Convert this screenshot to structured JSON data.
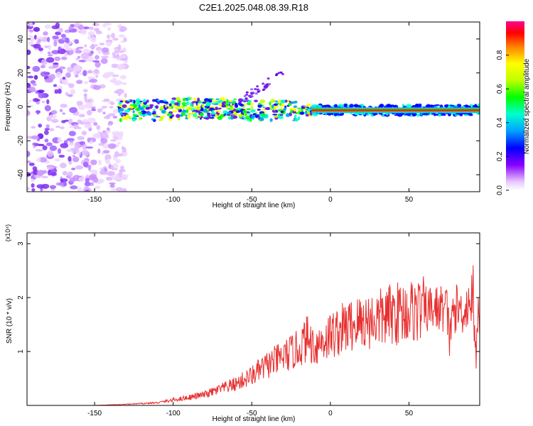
{
  "title": "C2E1.2025.048.08.39.R18",
  "chart_data": [
    {
      "type": "heatmap",
      "xlabel": "Height of straight line (km)",
      "ylabel": "Frequency (Hz)",
      "xlim": [
        -193,
        95
      ],
      "ylim": [
        -50,
        50
      ],
      "x_ticks": [
        -150,
        -100,
        -50,
        0,
        50
      ],
      "y_ticks": [
        -40,
        -20,
        0,
        20,
        40
      ],
      "colorbar": {
        "label": "Normalized spectral amplitude",
        "range": [
          0,
          1
        ],
        "ticks": [
          "0.0",
          "0.2",
          "0.4",
          "0.6",
          "0.8"
        ]
      },
      "features": {
        "noise_region_x": [
          -193,
          -130
        ],
        "echo_trace": {
          "x_start": -135,
          "x_end": 95,
          "center_freq_hz": -2,
          "strong_from_x": -12
        }
      }
    },
    {
      "type": "line",
      "xlabel": "Height of straight line (km)",
      "ylabel": "SNR (10 * v/v)",
      "y_scale_label": "(x10⁴)",
      "xlim": [
        -193,
        95
      ],
      "ylim": [
        0,
        3.2
      ],
      "x_ticks": [
        -150,
        -100,
        -50,
        0,
        50
      ],
      "y_ticks": [
        1,
        2,
        3
      ],
      "line_color": "#e83030",
      "series": [
        {
          "x": [
            -193,
            -150,
            -130,
            -110,
            -100,
            -90,
            -80,
            -70,
            -60,
            -50,
            -40,
            -30,
            -20,
            -15,
            -10,
            0,
            10,
            20,
            30,
            40,
            50,
            60,
            70,
            74,
            76,
            78,
            80,
            85,
            90,
            92,
            95
          ],
          "values": [
            0.0,
            0.0,
            0.02,
            0.05,
            0.1,
            0.15,
            0.2,
            0.3,
            0.4,
            0.55,
            0.75,
            0.9,
            1.05,
            1.25,
            1.1,
            1.3,
            1.45,
            1.55,
            1.6,
            1.7,
            1.75,
            1.78,
            1.8,
            1.8,
            1.2,
            1.75,
            1.8,
            1.75,
            2.0,
            1.2,
            1.5
          ]
        }
      ]
    }
  ]
}
